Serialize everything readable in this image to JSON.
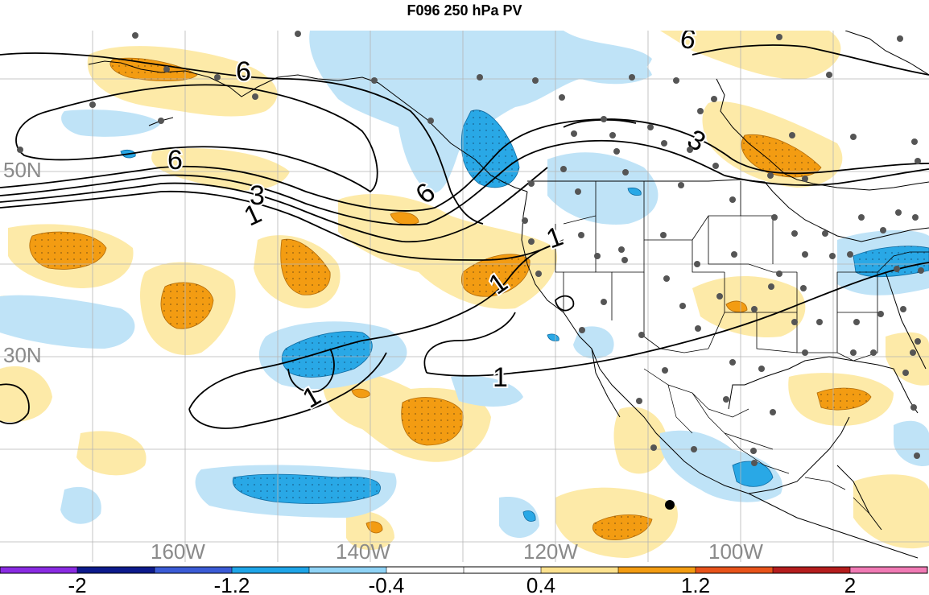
{
  "title": "F096 250 hPa PV",
  "lat_labels": {
    "n50": "50N",
    "n30": "30N"
  },
  "lon_labels": {
    "w160": "160W",
    "w140": "140W",
    "w120": "120W",
    "w100": "100W"
  },
  "contour_labels": [
    "6",
    "6",
    "3",
    "6",
    "1",
    "1",
    "1",
    "1",
    "1",
    "3",
    "6"
  ],
  "colorbar": {
    "colors": [
      "#8a2be2",
      "#0d1a8c",
      "#3b5bd6",
      "#1ea5e8",
      "#8fd3f6",
      "#ffffff",
      "#ffffff",
      "#fde28f",
      "#f39c12",
      "#e8531a",
      "#b51d1d",
      "#f07ab4"
    ],
    "tick_labels": [
      "-2",
      "-1.2",
      "-0.4",
      "0.4",
      "1.2",
      "2"
    ]
  },
  "colors": {
    "light_blue": "#bfe3f7",
    "blue": "#29a8e6",
    "light_yellow": "#fdeaa8",
    "orange": "#f39c12",
    "grid": "#b5b5b5",
    "station_dot": "#555555"
  }
}
